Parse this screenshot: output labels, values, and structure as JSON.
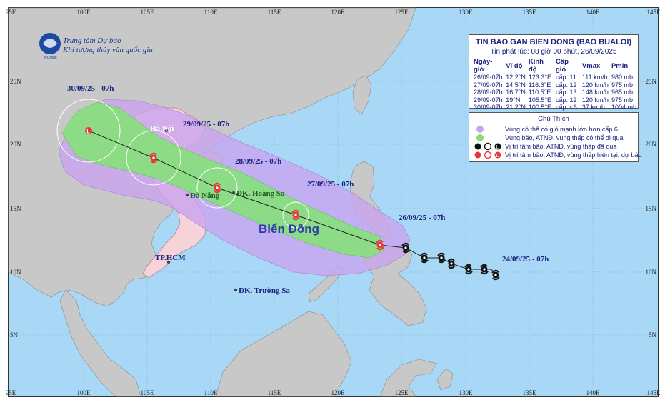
{
  "map": {
    "lon_ticks": [
      "95E",
      "100E",
      "105E",
      "110E",
      "115E",
      "120E",
      "125E",
      "130E",
      "135E",
      "140E",
      "145E"
    ],
    "lat_ticks": [
      "25N",
      "20N",
      "15N",
      "10N",
      "5N"
    ],
    "logo_line1": "Trung tâm Dự báo",
    "logo_line2": "Khí tượng thủy văn quốc gia",
    "logo_abbr": "NCHMF",
    "sea_name": "Biển Đông",
    "places": {
      "hanoi": "Hà Nội",
      "danang": "Đà Nẵng",
      "hoangsa": "ĐK. Hoàng Sa",
      "tphcm": "TP.HCM",
      "truongsa": "ĐK. Trường Sa"
    },
    "date_labels": {
      "d3009": "30/09/25 - 07h",
      "d2909": "29/09/25 - 07h",
      "d2809": "28/09/25 - 07h",
      "d2709": "27/09/25 - 07h",
      "d2609": "26/09/25 - 07h",
      "d2409": "24/09/25 - 07h"
    },
    "colors": {
      "sea": "#a8d8f5",
      "land": "#c8c8c8",
      "vn_land": "#f5d3d8",
      "risk_zone": "#c9a3f0",
      "storm_zone": "#86e07a",
      "storm_past": "#111111",
      "storm_current": "#e8333a"
    }
  },
  "info": {
    "title": "TIN BAO GAN BIEN DONG (BAO BUALOI)",
    "issued": "Tin phát lúc: 08 giờ 00 phút, 26/09/2025",
    "headers": [
      "Ngày-giờ",
      "Vĩ độ",
      "Kinh độ",
      "Cấp gió",
      "Vmax",
      "Pmin"
    ],
    "rows": [
      [
        "26/09-07h",
        "12.2°N",
        "123.3°E",
        "cấp: 11",
        "111 km/h",
        "980 mb"
      ],
      [
        "27/09-07h",
        "14.5°N",
        "116.6°E",
        "cấp: 12",
        "120 km/h",
        "975 mb"
      ],
      [
        "28/09-07h",
        "16.7°N",
        "110.5°E",
        "cấp: 13",
        "148 km/h",
        "965 mb"
      ],
      [
        "29/09-07h",
        "19°N",
        "105.5°E",
        "cấp: 12",
        "120 km/h",
        "975 mb"
      ],
      [
        "30/09-07h",
        "21.2°N",
        "100.5°E",
        "cấp: <6",
        "37 km/h",
        "1004 mb"
      ]
    ]
  },
  "legend": {
    "title": "Chú Thích",
    "items": [
      "Vùng có thể có gió mạnh lớn hơn cấp 6",
      "Vùng bão, ATNĐ, vùng thấp có thể đi qua",
      "Vị trí tâm bão, ATNĐ, vùng thấp đã qua",
      "Vị trí tâm bão, ATNĐ, vùng thấp hiện tại, dự báo"
    ]
  }
}
